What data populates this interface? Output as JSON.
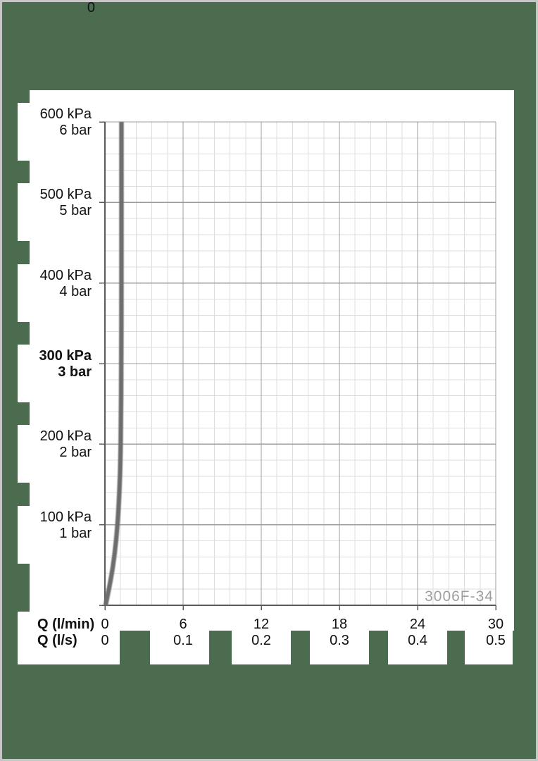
{
  "colors": {
    "background_green": "#4b6c4f",
    "panel_white": "#ffffff",
    "frame_border": "#c7c7c7",
    "grid_minor": "#dddddd",
    "grid_major": "#9c9c9c",
    "axis": "#5a5a5a",
    "curve": "#6d6d6d",
    "label_text": "#111111",
    "watermark_text": "#9e9e9e"
  },
  "chart_data": {
    "type": "line",
    "title": "",
    "watermark": "3006F-34",
    "grid": "on",
    "y_axis": {
      "unit_primary": "kPa",
      "unit_secondary": "bar",
      "min": 0,
      "max": 600,
      "major_step": 100,
      "minor_step": 20,
      "zero_label": "0",
      "labels": [
        {
          "kpa": "600 kPa",
          "bar": "6 bar",
          "value": 600,
          "bold": false
        },
        {
          "kpa": "500 kPa",
          "bar": "5 bar",
          "value": 500,
          "bold": false
        },
        {
          "kpa": "400 kPa",
          "bar": "4 bar",
          "value": 400,
          "bold": false
        },
        {
          "kpa": "300 kPa",
          "bar": "3 bar",
          "value": 300,
          "bold": true
        },
        {
          "kpa": "200 kPa",
          "bar": "2 bar",
          "value": 200,
          "bold": false
        },
        {
          "kpa": "100 kPa",
          "bar": "1 bar",
          "value": 100,
          "bold": false
        }
      ]
    },
    "x_axis": {
      "min": 0,
      "max": 30,
      "major_step": 6,
      "minor_step": 1.2,
      "majors": [
        0,
        6,
        12,
        18,
        24,
        30
      ],
      "rows": [
        {
          "title": "Q (l/min)",
          "ticks": [
            "0",
            "6",
            "12",
            "18",
            "24",
            "30"
          ]
        },
        {
          "title": "Q (l/s)",
          "ticks": [
            "0",
            "0.1",
            "0.2",
            "0.3",
            "0.4",
            "0.5"
          ]
        }
      ]
    },
    "series": [
      {
        "name": "flow-curve",
        "points_lmin_kpa": [
          [
            0.05,
            0
          ],
          [
            0.43,
            29
          ],
          [
            0.76,
            64
          ],
          [
            0.97,
            100
          ],
          [
            1.11,
            139
          ],
          [
            1.19,
            178
          ],
          [
            1.23,
            226
          ],
          [
            1.26,
            300
          ],
          [
            1.27,
            400
          ],
          [
            1.27,
            500
          ],
          [
            1.27,
            600
          ]
        ]
      }
    ]
  }
}
